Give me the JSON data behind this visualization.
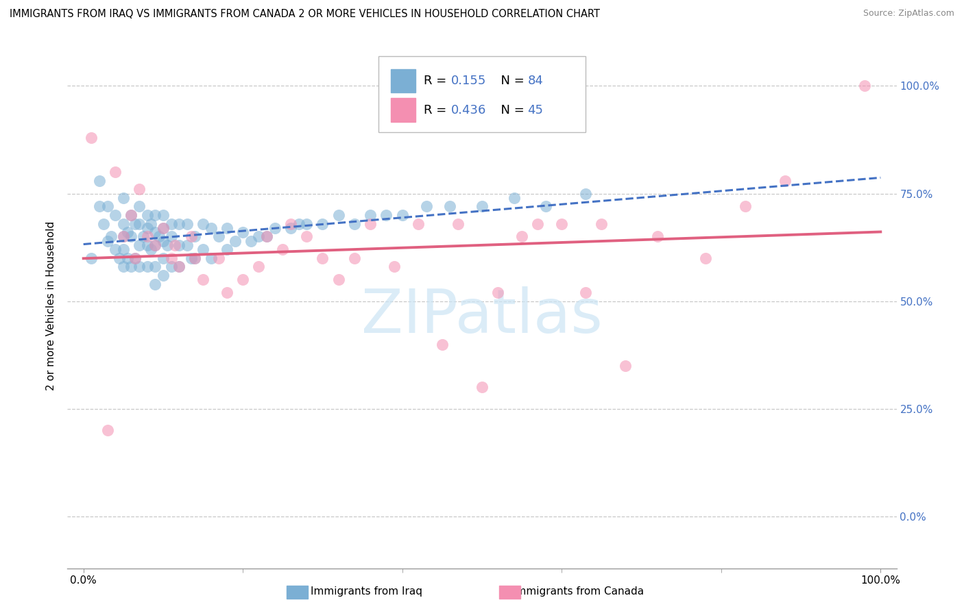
{
  "title": "IMMIGRANTS FROM IRAQ VS IMMIGRANTS FROM CANADA 2 OR MORE VEHICLES IN HOUSEHOLD CORRELATION CHART",
  "source": "Source: ZipAtlas.com",
  "ylabel": "2 or more Vehicles in Household",
  "xlim": [
    -0.02,
    1.02
  ],
  "ylim": [
    -0.12,
    1.1
  ],
  "ytick_values": [
    0.0,
    0.25,
    0.5,
    0.75,
    1.0
  ],
  "ytick_labels": [
    "0.0%",
    "25.0%",
    "50.0%",
    "75.0%",
    "100.0%"
  ],
  "xtick_values": [
    0.0,
    1.0
  ],
  "xtick_labels": [
    "0.0%",
    "100.0%"
  ],
  "iraq_R": 0.155,
  "iraq_N": 84,
  "canada_R": 0.436,
  "canada_N": 45,
  "iraq_color": "#7bafd4",
  "canada_color": "#f48fb1",
  "iraq_line_color": "#4472c4",
  "canada_line_color": "#e06080",
  "right_axis_color": "#4472c4",
  "grid_color": "#c8c8c8",
  "background_color": "#ffffff",
  "watermark_color": "#cce5f5",
  "iraq_scatter_x": [
    0.01,
    0.02,
    0.02,
    0.025,
    0.03,
    0.03,
    0.035,
    0.04,
    0.04,
    0.045,
    0.05,
    0.05,
    0.05,
    0.05,
    0.05,
    0.055,
    0.055,
    0.06,
    0.06,
    0.06,
    0.065,
    0.065,
    0.07,
    0.07,
    0.07,
    0.07,
    0.075,
    0.08,
    0.08,
    0.08,
    0.08,
    0.085,
    0.085,
    0.09,
    0.09,
    0.09,
    0.09,
    0.09,
    0.095,
    0.1,
    0.1,
    0.1,
    0.1,
    0.1,
    0.105,
    0.11,
    0.11,
    0.11,
    0.12,
    0.12,
    0.12,
    0.13,
    0.13,
    0.135,
    0.14,
    0.14,
    0.15,
    0.15,
    0.16,
    0.16,
    0.17,
    0.18,
    0.18,
    0.19,
    0.2,
    0.21,
    0.22,
    0.23,
    0.24,
    0.26,
    0.27,
    0.28,
    0.3,
    0.32,
    0.34,
    0.36,
    0.38,
    0.4,
    0.43,
    0.46,
    0.5,
    0.54,
    0.58,
    0.63
  ],
  "iraq_scatter_y": [
    0.6,
    0.78,
    0.72,
    0.68,
    0.72,
    0.64,
    0.65,
    0.7,
    0.62,
    0.6,
    0.74,
    0.68,
    0.65,
    0.62,
    0.58,
    0.66,
    0.6,
    0.7,
    0.65,
    0.58,
    0.68,
    0.6,
    0.72,
    0.68,
    0.63,
    0.58,
    0.65,
    0.7,
    0.67,
    0.63,
    0.58,
    0.68,
    0.62,
    0.7,
    0.66,
    0.63,
    0.58,
    0.54,
    0.65,
    0.7,
    0.67,
    0.64,
    0.6,
    0.56,
    0.63,
    0.68,
    0.65,
    0.58,
    0.68,
    0.63,
    0.58,
    0.68,
    0.63,
    0.6,
    0.65,
    0.6,
    0.68,
    0.62,
    0.67,
    0.6,
    0.65,
    0.67,
    0.62,
    0.64,
    0.66,
    0.64,
    0.65,
    0.65,
    0.67,
    0.67,
    0.68,
    0.68,
    0.68,
    0.7,
    0.68,
    0.7,
    0.7,
    0.7,
    0.72,
    0.72,
    0.72,
    0.74,
    0.72,
    0.75
  ],
  "canada_scatter_x": [
    0.01,
    0.03,
    0.04,
    0.05,
    0.06,
    0.065,
    0.07,
    0.08,
    0.09,
    0.1,
    0.11,
    0.115,
    0.12,
    0.135,
    0.14,
    0.15,
    0.17,
    0.18,
    0.2,
    0.22,
    0.23,
    0.25,
    0.26,
    0.28,
    0.3,
    0.32,
    0.34,
    0.36,
    0.39,
    0.42,
    0.45,
    0.47,
    0.5,
    0.52,
    0.55,
    0.57,
    0.6,
    0.63,
    0.65,
    0.68,
    0.72,
    0.78,
    0.83,
    0.88,
    0.98
  ],
  "canada_scatter_y": [
    0.88,
    0.2,
    0.8,
    0.65,
    0.7,
    0.6,
    0.76,
    0.65,
    0.63,
    0.67,
    0.6,
    0.63,
    0.58,
    0.65,
    0.6,
    0.55,
    0.6,
    0.52,
    0.55,
    0.58,
    0.65,
    0.62,
    0.68,
    0.65,
    0.6,
    0.55,
    0.6,
    0.68,
    0.58,
    0.68,
    0.4,
    0.68,
    0.3,
    0.52,
    0.65,
    0.68,
    0.68,
    0.52,
    0.68,
    0.35,
    0.65,
    0.6,
    0.72,
    0.78,
    1.0
  ]
}
